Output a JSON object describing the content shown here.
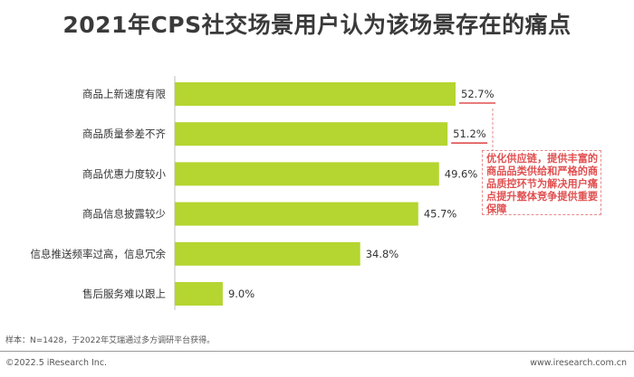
{
  "title": "2021年CPS社交场景用户认为该场景存在的痛点",
  "chart_data": {
    "type": "bar",
    "orientation": "horizontal",
    "categories": [
      "商品上新速度有限",
      "商品质量参差不齐",
      "商品优惠力度较小",
      "商品信息披露较少",
      "信息推送频率过高，信息冗余",
      "售后服务难以跟上"
    ],
    "values": [
      52.7,
      51.2,
      49.6,
      45.7,
      34.8,
      9.0
    ],
    "value_labels": [
      "52.7%",
      "51.2%",
      "49.6%",
      "45.7%",
      "34.8%",
      "9.0%"
    ],
    "highlighted": [
      0,
      1
    ],
    "xlim": [
      0,
      60
    ],
    "bar_color": "#b5d530",
    "highlight_color": "#e05050",
    "annotation": "优化供应链，提供丰富的商品品类供给和严格的商品质控环节为解决用户痛点提升整体竞争提供重要保障"
  },
  "footnote": "样本：N=1428，于2022年艾瑞通过多方调研平台获得。",
  "copyright": "©2022.5 iResearch Inc.",
  "site": "www.iresearch.com.cn"
}
